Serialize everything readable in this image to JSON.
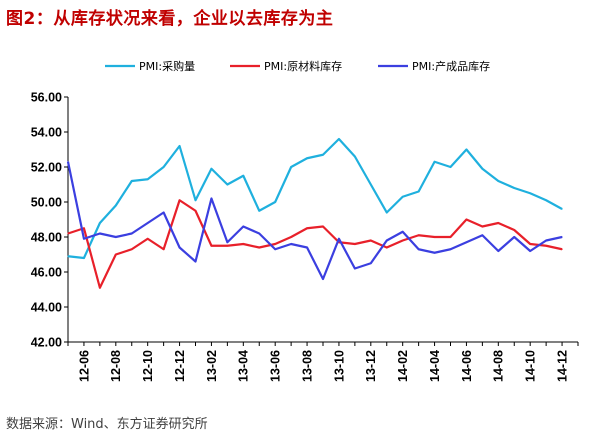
{
  "title": "图2：从库存状况来看，企业以去库存为主",
  "source": "数据来源：Wind、东方证券研究所",
  "chart_data": {
    "type": "line",
    "title": "",
    "xlabel": "",
    "ylabel": "",
    "ylim": [
      42.0,
      56.0
    ],
    "yticks": [
      "42.00",
      "44.00",
      "46.00",
      "48.00",
      "50.00",
      "52.00",
      "54.00",
      "56.00"
    ],
    "grid": false,
    "legend_position": "top",
    "x": [
      "12-05",
      "12-06",
      "12-07",
      "12-08",
      "12-09",
      "12-10",
      "12-11",
      "12-12",
      "13-01",
      "13-02",
      "13-03",
      "13-04",
      "13-05",
      "13-06",
      "13-07",
      "13-08",
      "13-09",
      "13-10",
      "13-11",
      "13-12",
      "14-01",
      "14-02",
      "14-03",
      "14-04",
      "14-05",
      "14-06",
      "14-07",
      "14-08",
      "14-09",
      "14-10",
      "14-11",
      "14-12",
      "15-01"
    ],
    "xtick_labels": [
      "12-06",
      "12-08",
      "12-10",
      "12-12",
      "13-02",
      "13-04",
      "13-06",
      "13-08",
      "13-10",
      "13-12",
      "14-02",
      "14-04",
      "14-06",
      "14-08",
      "14-10",
      "14-12"
    ],
    "series": [
      {
        "name": "PMI:采购量",
        "color": "#1fb0de",
        "values": [
          46.9,
          46.8,
          48.8,
          49.8,
          51.2,
          51.3,
          52.0,
          53.2,
          50.1,
          51.9,
          51.0,
          51.5,
          49.5,
          50.0,
          52.0,
          52.5,
          52.7,
          53.6,
          52.6,
          51.0,
          49.4,
          50.3,
          50.6,
          52.3,
          52.0,
          53.0,
          51.9,
          51.2,
          50.8,
          50.5,
          50.1,
          49.6,
          null
        ]
      },
      {
        "name": "PMI:原材料库存",
        "color": "#e8202a",
        "values": [
          48.2,
          48.5,
          45.1,
          47.0,
          47.3,
          47.9,
          47.3,
          50.1,
          49.5,
          47.5,
          47.5,
          47.6,
          47.4,
          47.6,
          48.0,
          48.5,
          48.6,
          47.7,
          47.6,
          47.8,
          47.4,
          47.8,
          48.1,
          48.0,
          48.0,
          49.0,
          48.6,
          48.8,
          48.4,
          47.6,
          47.5,
          47.3,
          null
        ]
      },
      {
        "name": "PMI:产成品库存",
        "color": "#3b3fe0",
        "values": [
          52.3,
          47.9,
          48.2,
          48.0,
          48.2,
          48.8,
          49.4,
          47.4,
          46.6,
          50.2,
          47.7,
          48.6,
          48.2,
          47.3,
          47.6,
          47.4,
          45.6,
          47.9,
          46.2,
          46.5,
          47.8,
          48.3,
          47.3,
          47.1,
          47.3,
          47.7,
          48.1,
          47.2,
          48.0,
          47.2,
          47.8,
          48.0,
          null
        ]
      }
    ]
  }
}
